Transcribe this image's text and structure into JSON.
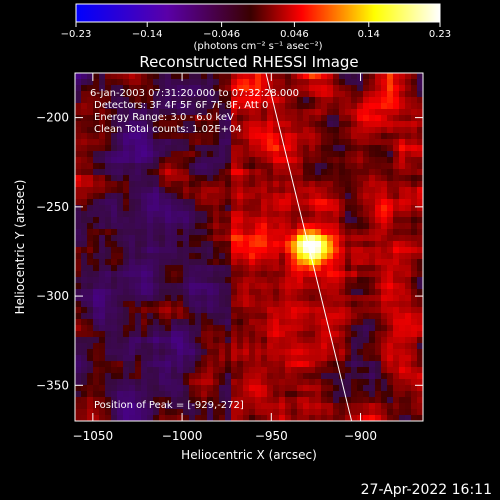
{
  "chart_data": {
    "type": "heatmap",
    "title": "Reconstructed RHESSI Image",
    "xlabel": "Heliocentric X (arcsec)",
    "ylabel": "Heliocentric Y (arcsec)",
    "xlim": [
      -1060,
      -865
    ],
    "ylim": [
      -370,
      -175
    ],
    "x_ticks": [
      -1050,
      -1000,
      -950,
      -900
    ],
    "x_tick_labels": [
      "−1050",
      "−1000",
      "−950",
      "−900"
    ],
    "y_ticks": [
      -200,
      -250,
      -300,
      -350
    ],
    "y_tick_labels": [
      "−200",
      "−250",
      "−300",
      "−350"
    ],
    "colorbar": {
      "range": [
        -0.23,
        0.23
      ],
      "ticks": [
        -0.23,
        -0.14,
        -0.046,
        0.046,
        0.14,
        0.23
      ],
      "tick_labels": [
        "−0.23",
        "−0.14",
        "−0.046",
        "0.046",
        "0.14",
        "0.23"
      ],
      "unit_label": "(photons cm⁻² s⁻¹ asec⁻²)",
      "colors": [
        "#0000ff",
        "#5a00a8",
        "#5a0000",
        "#ff0000",
        "#ffff00",
        "#ffffff"
      ]
    },
    "annotations": [
      "6-Jan-2003 07:31:20.000 to 07:32:28.000",
      "Detectors: 3F 4F 5F 6F 7F 8F, Att 0",
      "Energy Range: 3.0 - 6.0 keV",
      "Clean     Total counts: 1.02E+04"
    ],
    "peak_label": "Position of Peak = [-929,-272]",
    "peak": {
      "x": -929,
      "y": -272
    },
    "limb_line": [
      {
        "x": -953,
        "y": -175
      },
      {
        "x": -905,
        "y": -370
      }
    ]
  },
  "timestamp": "27-Apr-2022 16:11"
}
